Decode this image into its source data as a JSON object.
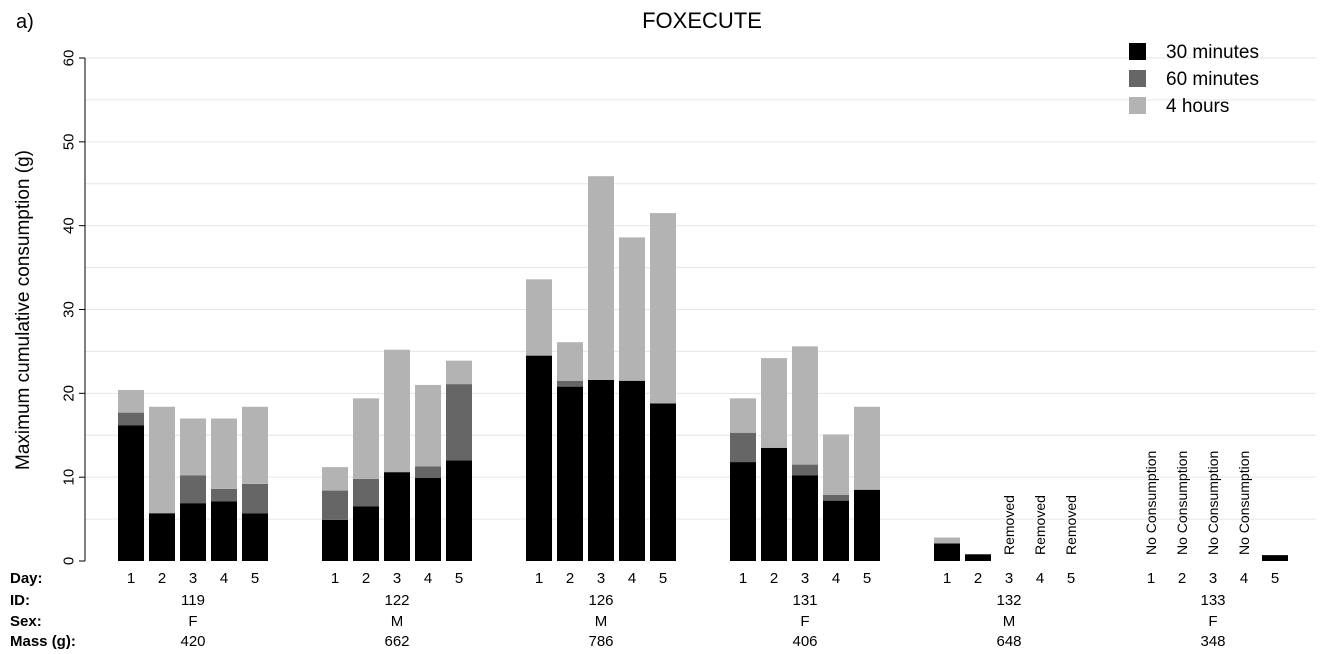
{
  "chart_data": {
    "type": "bar",
    "stacked": true,
    "panel_label": "a)",
    "title": "FOXECUTE",
    "ylabel": "Maximum cumulative consumption (g)",
    "xlabel": "",
    "ylim": [
      0,
      60
    ],
    "yticks": [
      0,
      10,
      20,
      30,
      40,
      50,
      60
    ],
    "grid": "horizontal",
    "legend_position": "top-right",
    "colors": {
      "30 minutes": "#000000",
      "60 minutes": "#666666",
      "4 hours": "#b3b3b3",
      "axis": "#000000",
      "grid": "#e6e6e6"
    },
    "row_labels": {
      "day": "Day:",
      "id": "ID:",
      "sex": "Sex:",
      "mass": "Mass (g):"
    },
    "series": [
      {
        "name": "30 minutes"
      },
      {
        "name": "60 minutes"
      },
      {
        "name": "4 hours"
      }
    ],
    "groups": [
      {
        "id": "119",
        "sex": "F",
        "mass": "420",
        "days": [
          {
            "day": "1",
            "cum": [
              16.2,
              17.7,
              20.4
            ],
            "annotation": ""
          },
          {
            "day": "2",
            "cum": [
              5.7,
              5.7,
              18.4
            ],
            "annotation": ""
          },
          {
            "day": "3",
            "cum": [
              6.9,
              10.2,
              17.0
            ],
            "annotation": ""
          },
          {
            "day": "4",
            "cum": [
              7.1,
              8.6,
              17.0
            ],
            "annotation": ""
          },
          {
            "day": "5",
            "cum": [
              5.7,
              9.2,
              18.4
            ],
            "annotation": ""
          }
        ]
      },
      {
        "id": "122",
        "sex": "M",
        "mass": "662",
        "days": [
          {
            "day": "1",
            "cum": [
              4.9,
              8.4,
              11.2
            ],
            "annotation": ""
          },
          {
            "day": "2",
            "cum": [
              6.5,
              9.8,
              19.4
            ],
            "annotation": ""
          },
          {
            "day": "3",
            "cum": [
              10.6,
              10.6,
              25.2
            ],
            "annotation": ""
          },
          {
            "day": "4",
            "cum": [
              9.9,
              11.3,
              21.0
            ],
            "annotation": ""
          },
          {
            "day": "5",
            "cum": [
              12.0,
              21.1,
              23.9
            ],
            "annotation": ""
          }
        ]
      },
      {
        "id": "126",
        "sex": "M",
        "mass": "786",
        "days": [
          {
            "day": "1",
            "cum": [
              24.5,
              24.5,
              33.6
            ],
            "annotation": ""
          },
          {
            "day": "2",
            "cum": [
              20.8,
              21.5,
              26.1
            ],
            "annotation": ""
          },
          {
            "day": "3",
            "cum": [
              21.6,
              21.6,
              45.9
            ],
            "annotation": ""
          },
          {
            "day": "4",
            "cum": [
              21.5,
              21.5,
              38.6
            ],
            "annotation": ""
          },
          {
            "day": "5",
            "cum": [
              18.8,
              18.8,
              41.5
            ],
            "annotation": ""
          }
        ]
      },
      {
        "id": "131",
        "sex": "F",
        "mass": "406",
        "days": [
          {
            "day": "1",
            "cum": [
              11.8,
              15.3,
              19.4
            ],
            "annotation": ""
          },
          {
            "day": "2",
            "cum": [
              13.5,
              13.5,
              24.2
            ],
            "annotation": ""
          },
          {
            "day": "3",
            "cum": [
              10.2,
              11.5,
              25.6
            ],
            "annotation": ""
          },
          {
            "day": "4",
            "cum": [
              7.2,
              7.9,
              15.1
            ],
            "annotation": ""
          },
          {
            "day": "5",
            "cum": [
              8.5,
              8.5,
              18.4
            ],
            "annotation": ""
          }
        ]
      },
      {
        "id": "132",
        "sex": "M",
        "mass": "648",
        "days": [
          {
            "day": "1",
            "cum": [
              2.1,
              2.1,
              2.8
            ],
            "annotation": ""
          },
          {
            "day": "2",
            "cum": [
              0.8,
              0.8,
              0.8
            ],
            "annotation": ""
          },
          {
            "day": "3",
            "cum": [
              0,
              0,
              0
            ],
            "annotation": "Removed"
          },
          {
            "day": "4",
            "cum": [
              0,
              0,
              0
            ],
            "annotation": "Removed"
          },
          {
            "day": "5",
            "cum": [
              0,
              0,
              0
            ],
            "annotation": "Removed"
          }
        ]
      },
      {
        "id": "133",
        "sex": "F",
        "mass": "348",
        "days": [
          {
            "day": "1",
            "cum": [
              0,
              0,
              0
            ],
            "annotation": "No Consumption"
          },
          {
            "day": "2",
            "cum": [
              0,
              0,
              0
            ],
            "annotation": "No Consumption"
          },
          {
            "day": "3",
            "cum": [
              0,
              0,
              0
            ],
            "annotation": "No Consumption"
          },
          {
            "day": "4",
            "cum": [
              0,
              0,
              0
            ],
            "annotation": "No Consumption"
          },
          {
            "day": "5",
            "cum": [
              0.7,
              0.7,
              0.7
            ],
            "annotation": ""
          }
        ]
      }
    ]
  }
}
